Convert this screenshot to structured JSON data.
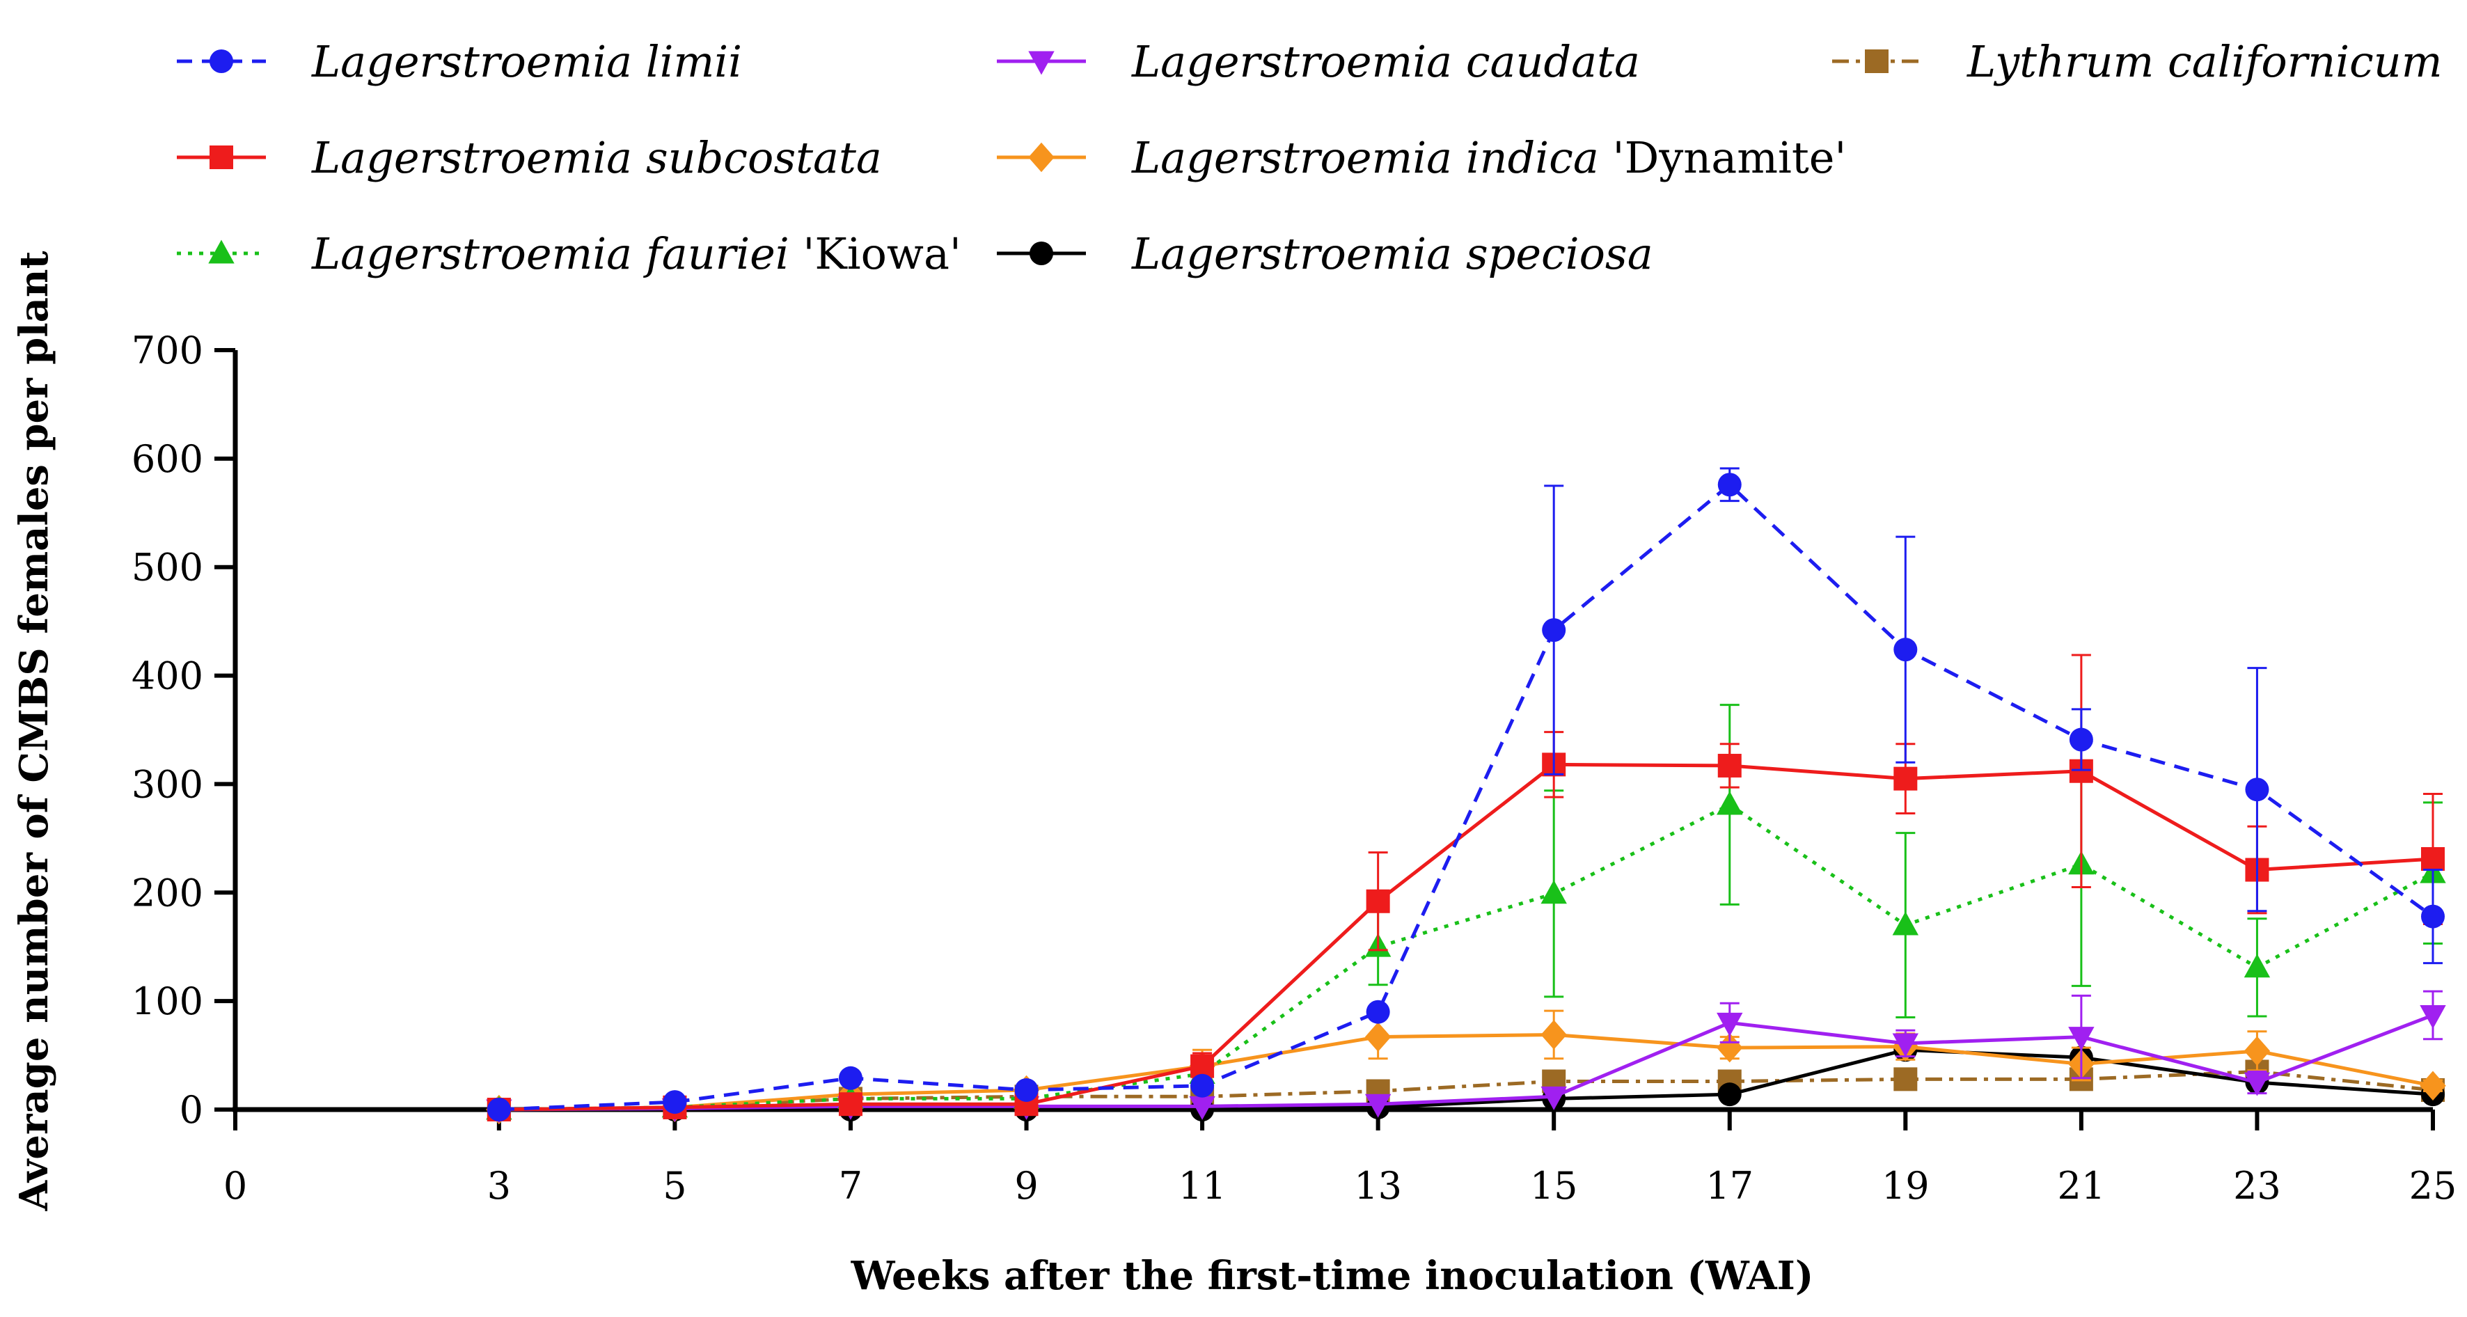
{
  "chart_data": {
    "type": "line",
    "xlabel": "Weeks after the first-time inoculation (WAI)",
    "ylabel": "Average number of CMBS females per plant",
    "xlim": [
      0,
      25
    ],
    "ylim": [
      0,
      700
    ],
    "x_ticks": [
      "0",
      "3",
      "5",
      "7",
      "9",
      "11",
      "13",
      "15",
      "17",
      "19",
      "21",
      "23",
      "25"
    ],
    "y_ticks": [
      "0",
      "100",
      "200",
      "300",
      "400",
      "500",
      "600",
      "700"
    ],
    "legend_position": "top",
    "x": [
      3,
      5,
      7,
      9,
      11,
      13,
      15,
      17,
      19,
      21,
      23,
      25
    ],
    "series": [
      {
        "name": "Lagerstroemia limii",
        "name_italic": "Lagerstroemia limii",
        "name_suffix": "",
        "color": "#1d1df0",
        "dash": "dashed",
        "marker": "circle",
        "values": [
          0,
          7,
          29,
          18,
          22,
          90,
          442,
          576,
          424,
          341,
          295,
          178
        ],
        "errors": [
          0,
          0,
          0,
          0,
          0,
          0,
          133,
          15,
          104,
          28,
          112,
          43
        ]
      },
      {
        "name": "Lagerstroemia subcostata",
        "name_italic": "Lagerstroemia subcostata",
        "name_suffix": "",
        "color": "#ee1c1c",
        "dash": "solid",
        "marker": "square",
        "values": [
          0,
          2,
          5,
          5,
          40,
          192,
          318,
          317,
          305,
          312,
          221,
          231
        ],
        "errors": [
          0,
          0,
          0,
          0,
          12,
          45,
          30,
          20,
          32,
          107,
          40,
          60
        ]
      },
      {
        "name": "Lagerstroemia fauriei 'Kiowa'",
        "name_italic": "Lagerstroemia fauriei ",
        "name_suffix": "'Kiowa'",
        "color": "#19c019",
        "dash": "dotted",
        "marker": "triangle-up",
        "values": [
          0,
          2,
          10,
          10,
          33,
          150,
          199,
          281,
          170,
          226,
          131,
          218
        ],
        "errors": [
          0,
          0,
          0,
          0,
          0,
          35,
          95,
          92,
          85,
          112,
          45,
          65
        ]
      },
      {
        "name": "Lagerstroemia caudata",
        "name_italic": "Lagerstroemia caudata",
        "name_suffix": "",
        "color": "#a020f0",
        "dash": "solid",
        "marker": "triangle-down",
        "values": [
          0,
          1,
          3,
          3,
          3,
          5,
          12,
          80,
          61,
          67,
          25,
          87
        ],
        "errors": [
          0,
          0,
          0,
          0,
          0,
          0,
          0,
          18,
          12,
          38,
          10,
          22
        ]
      },
      {
        "name": "Lagerstroemia indica 'Dynamite'",
        "name_italic": "Lagerstroemia indica",
        "name_suffix": " 'Dynamite'",
        "color": "#f7941d",
        "dash": "solid",
        "marker": "diamond",
        "values": [
          0,
          2,
          14,
          18,
          40,
          67,
          69,
          57,
          58,
          42,
          54,
          22
        ],
        "errors": [
          0,
          0,
          0,
          0,
          15,
          20,
          22,
          10,
          12,
          15,
          18,
          5
        ]
      },
      {
        "name": "Lagerstroemia speciosa",
        "name_italic": "Lagerstroemia speciosa",
        "name_suffix": "",
        "color": "#000000",
        "dash": "solid",
        "marker": "circle",
        "values": [
          0,
          0,
          0,
          0,
          0,
          2,
          10,
          14,
          55,
          48,
          25,
          14
        ],
        "errors": [
          0,
          0,
          0,
          0,
          0,
          0,
          0,
          0,
          0,
          0,
          0,
          0
        ]
      },
      {
        "name": "Lythrum californicum",
        "name_italic": "Lythrum californicum",
        "name_suffix": "",
        "color": "#9c6a24",
        "dash": "dashdot",
        "marker": "square",
        "values": [
          0,
          2,
          10,
          12,
          12,
          17,
          26,
          26,
          28,
          28,
          35,
          18
        ],
        "errors": [
          0,
          0,
          0,
          0,
          0,
          0,
          0,
          0,
          0,
          0,
          0,
          0
        ]
      }
    ]
  }
}
